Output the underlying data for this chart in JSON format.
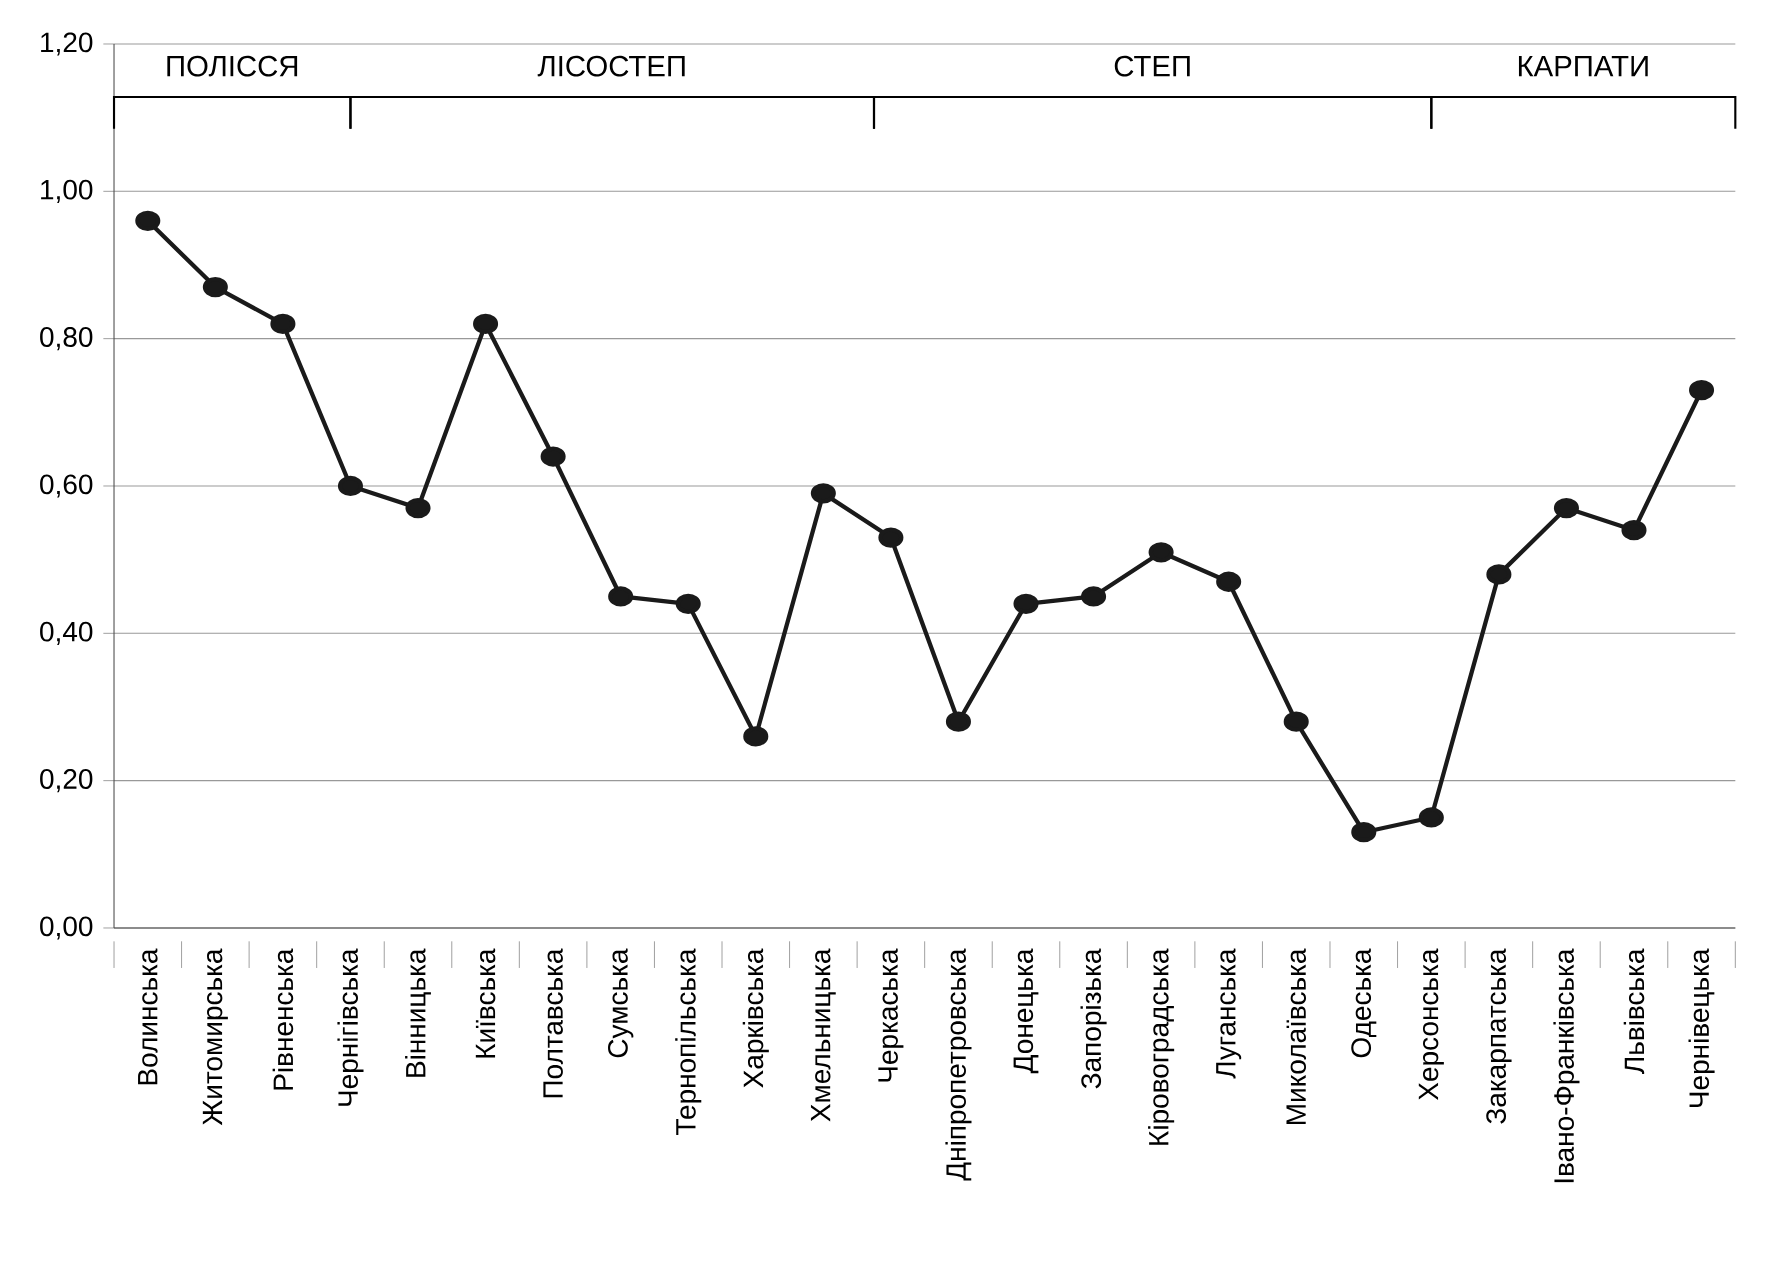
{
  "chart_data": {
    "type": "line",
    "categories": [
      "Волинська",
      "Житомирська",
      "Рівненська",
      "Чернігівська",
      "Вінницька",
      "Київська",
      "Полтавська",
      "Сумська",
      "Тернопільська",
      "Харківська",
      "Хмельницька",
      "Черкаська",
      "Дніпропетровська",
      "Донецька",
      "Запорізька",
      "Кіровоградська",
      "Луганська",
      "Миколаївська",
      "Одеська",
      "Херсонська",
      "Закарпатська",
      "Івано-Франківська",
      "Львівська",
      "Чернівецька"
    ],
    "series": [
      {
        "color": "#1a1a1a",
        "values": [
          0.96,
          0.87,
          0.82,
          0.6,
          0.57,
          0.82,
          0.64,
          0.45,
          0.44,
          0.26,
          0.59,
          0.53,
          0.28,
          0.44,
          0.45,
          0.51,
          0.47,
          0.28,
          0.13,
          0.15,
          0.48,
          0.57,
          0.54,
          0.73
        ]
      }
    ],
    "annotations": [
      "ПОЛІССЯ",
      "ЛІСОСТЕП",
      "СТЕП",
      "КАРПАТИ"
    ],
    "ylim": [
      0,
      1.2
    ],
    "yticks": [
      {
        "value": 0,
        "label": "0,00"
      },
      {
        "value": 0.2,
        "label": "0,20"
      },
      {
        "value": 0.4,
        "label": "0,40"
      },
      {
        "value": 0.6,
        "label": "0,60"
      },
      {
        "value": 0.8,
        "label": "0,80"
      },
      {
        "value": 1.0,
        "label": "1,00"
      },
      {
        "value": 1.2,
        "label": "1,20"
      }
    ],
    "grid": "y",
    "marker": "circle",
    "line_style": "solid"
  }
}
